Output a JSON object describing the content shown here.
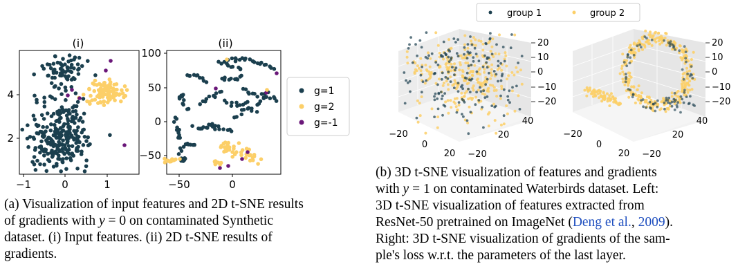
{
  "colors": {
    "group1": "#1b3f4e",
    "group2": "#fccf68",
    "gneg": "#6a1779",
    "link": "#1f4fbf"
  },
  "left_figure": {
    "panel_i": {
      "title": "(i)",
      "x_ticks": [
        "−1",
        "0",
        "1"
      ],
      "y_ticks": [
        "2",
        "4"
      ]
    },
    "panel_ii": {
      "title": "(ii)",
      "x_ticks": [
        "−50",
        "0"
      ],
      "y_ticks": [
        "100",
        "50",
        "0",
        "−50"
      ]
    },
    "legend": [
      {
        "label": "g=1",
        "color": "#1b3f4e"
      },
      {
        "label": "g=2",
        "color": "#fccf68"
      },
      {
        "label": "g=-1",
        "color": "#6a1779"
      }
    ]
  },
  "right_figure": {
    "legend": [
      {
        "label": "group 1",
        "color": "#1b3f4e"
      },
      {
        "label": "group 2",
        "color": "#fccf68"
      }
    ],
    "x_ticks": [
      "−20",
      "0",
      "20"
    ],
    "y_ticks": [
      "−20",
      "20",
      "40"
    ],
    "z_ticks": [
      "20",
      "10",
      "0",
      "−10",
      "−20"
    ]
  },
  "chart_data": [
    {
      "type": "scatter",
      "title": "(i)",
      "xlim": [
        -1,
        1.6
      ],
      "ylim": [
        0.3,
        6
      ],
      "series": [
        {
          "name": "g=1"
        },
        {
          "name": "g=2"
        },
        {
          "name": "g=-1"
        }
      ]
    },
    {
      "type": "scatter",
      "title": "(ii)",
      "xlim": [
        -58,
        8
      ],
      "ylim": [
        -75,
        105
      ],
      "series": [
        {
          "name": "g=1"
        },
        {
          "name": "g=2"
        },
        {
          "name": "g=-1"
        }
      ]
    },
    {
      "type": "scatter",
      "series": [
        {
          "name": "group 1"
        },
        {
          "name": "group 2"
        }
      ]
    },
    {
      "type": "scatter",
      "series": [
        {
          "name": "group 1"
        },
        {
          "name": "group 2"
        }
      ]
    }
  ],
  "captions": {
    "a": {
      "l1": "(a) Visualization of input features and 2D t-SNE results",
      "l2a": "of gradients with ",
      "l2var": "y",
      "l2b": " = 0 on contaminated Synthetic",
      "l3": "dataset.  (i) Input features.  (ii) 2D t-SNE results of",
      "l4": "gradients."
    },
    "b": {
      "l1": "(b) 3D t-SNE visualization of features and gradients",
      "l2a": "with ",
      "l2var": "y",
      "l2b": " = 1 on contaminated Waterbirds dataset. Left:",
      "l3": "3D t-SNE visualization of features extracted from",
      "l4a": "ResNet-50 pretrained on ImageNet (",
      "l4cite": "Deng et al.",
      "l4comma": ", ",
      "l4year": "2009",
      "l4b": ").",
      "l5": "Right: 3D t-SNE visualization of gradients of the sam-",
      "l6": "ple's loss w.r.t.  the parameters of the last layer."
    }
  }
}
